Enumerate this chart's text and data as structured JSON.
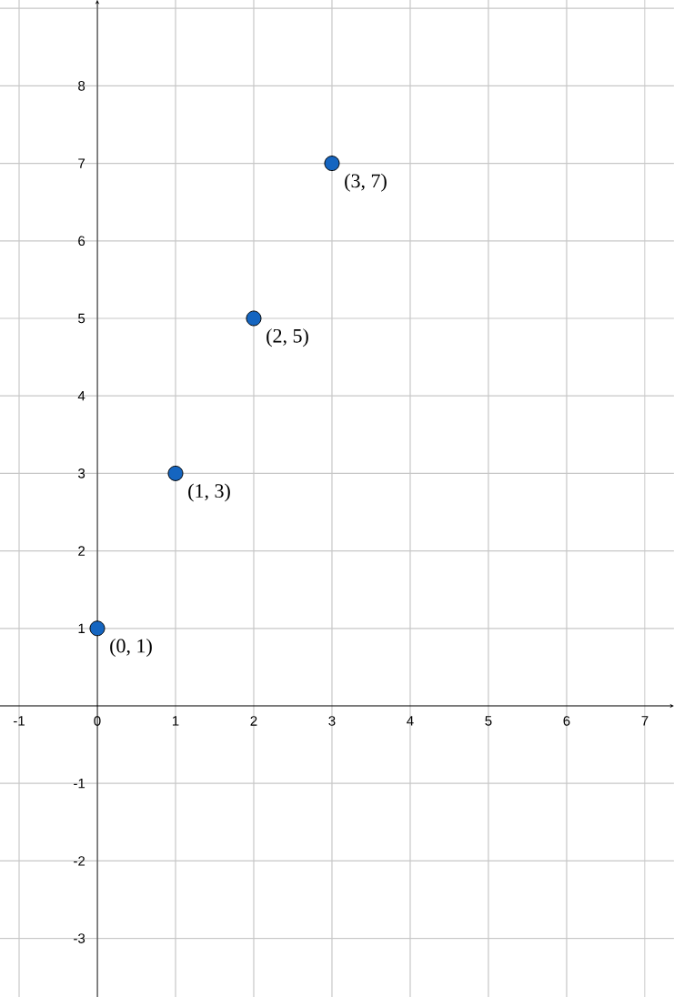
{
  "chart_data": {
    "type": "scatter",
    "x": [
      0,
      1,
      2,
      3
    ],
    "values": [
      1,
      3,
      5,
      7
    ],
    "color": "#1565c0",
    "marker": "circle",
    "xlim": [
      -1.244,
      7.372
    ],
    "ylim": [
      -3.756,
      9.108
    ],
    "xticks": [
      -1,
      0,
      1,
      2,
      3,
      4,
      5,
      6,
      7
    ],
    "yticks": [
      -3,
      -2,
      -1,
      1,
      2,
      3,
      4,
      5,
      6,
      7,
      8,
      {
        "value": 9,
        "label": null
      }
    ],
    "grid": true,
    "annotations": [
      {
        "text": "(0, 1)",
        "x": 0,
        "y": 1
      },
      {
        "text": "(1, 3)",
        "x": 1,
        "y": 3
      },
      {
        "text": "(2, 5)",
        "x": 2,
        "y": 5
      },
      {
        "text": "(3, 7)",
        "x": 3,
        "y": 7
      }
    ]
  }
}
